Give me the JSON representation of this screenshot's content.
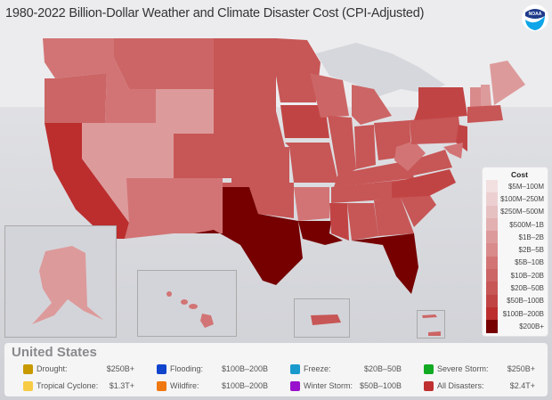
{
  "title": "1980-2022 Billion-Dollar Weather and Climate Disaster Cost (CPI-Adjusted)",
  "logo": {
    "text": "NOAA",
    "icon": "noaa-logo-icon"
  },
  "colors": {
    "c1": "#f2dfe0",
    "c2": "#ecd0d1",
    "c3": "#e6c1c2",
    "c4": "#e2b0b1",
    "c5": "#dd9a9b",
    "c6": "#d98b8c",
    "c7": "#d27475",
    "c8": "#cc6565",
    "c9": "#c75656",
    "c10": "#c14444",
    "c11": "#bc2e2e",
    "c12": "#760000"
  },
  "legend": {
    "title": "Cost",
    "items": [
      {
        "label": "$5M–100M",
        "color": "#f2dfe0"
      },
      {
        "label": "$100M–250M",
        "color": "#ecd0d1"
      },
      {
        "label": "$250M–500M",
        "color": "#e6c1c2"
      },
      {
        "label": "$500M–1B",
        "color": "#e2b0b1"
      },
      {
        "label": "$1B–2B",
        "color": "#dd9a9b"
      },
      {
        "label": "$2B–5B",
        "color": "#d98b8c"
      },
      {
        "label": "$5B–10B",
        "color": "#d27475"
      },
      {
        "label": "$10B–20B",
        "color": "#cc6565"
      },
      {
        "label": "$20B–50B",
        "color": "#c75656"
      },
      {
        "label": "$50B–100B",
        "color": "#c14444"
      },
      {
        "label": "$100B–200B",
        "color": "#bc2e2e"
      },
      {
        "label": "$200B+",
        "color": "#760000"
      }
    ]
  },
  "summary": {
    "region": "United States",
    "items": [
      {
        "label": "Drought:",
        "value": "$250B+",
        "color": "#c89a00"
      },
      {
        "label": "Flooding:",
        "value": "$100B–200B",
        "color": "#1144cc"
      },
      {
        "label": "Freeze:",
        "value": "$20B–50B",
        "color": "#1a9acc"
      },
      {
        "label": "Severe Storm:",
        "value": "$250B+",
        "color": "#11aa22"
      },
      {
        "label": "Tropical Cyclone:",
        "value": "$1.3T+",
        "color": "#f7cc44"
      },
      {
        "label": "Wildfire:",
        "value": "$100B–200B",
        "color": "#f07810"
      },
      {
        "label": "Winter Storm:",
        "value": "$50B–100B",
        "color": "#9911cc"
      },
      {
        "label": "All Disasters:",
        "value": "$2.4T+",
        "color": "#c03030"
      }
    ]
  },
  "insets": [
    "Alaska",
    "Hawaii",
    "Puerto Rico",
    "U.S. Virgin Islands"
  ],
  "chart_data": {
    "type": "choropleth",
    "title": "1980-2022 Billion-Dollar Weather and Climate Disaster Cost (CPI-Adjusted)",
    "legend_title": "Cost",
    "bins": [
      "$5M–100M",
      "$100M–250M",
      "$250M–500M",
      "$500M–1B",
      "$1B–2B",
      "$2B–5B",
      "$5B–10B",
      "$10B–20B",
      "$20B–50B",
      "$50B–100B",
      "$100B–200B",
      "$200B+"
    ],
    "states_approx": {
      "TX": "$200B+",
      "LA": "$200B+",
      "FL": "$200B+",
      "CA": "$100B–200B",
      "NY": "$50B–100B",
      "NJ": "$50B–100B",
      "IA": "$50B–100B",
      "NC": "$50B–100B",
      "MS": "$50B–100B",
      "WY": "$1B–2B",
      "NV": "$1B–2B",
      "UT": "$1B–2B",
      "AK": "$1B–2B",
      "NH": "$1B–2B",
      "ME": "$1B–2B",
      "VT": "$2B–5B",
      "AR": "$5B–10B",
      "AZ": "$5B–10B",
      "NM": "$5B–10B",
      "WA": "$5B–10B",
      "ID": "$5B–10B",
      "HI": "$5B–10B",
      "WV": "$5B–10B"
    },
    "summary": {
      "Drought": "$250B+",
      "Flooding": "$100B–200B",
      "Freeze": "$20B–50B",
      "Severe Storm": "$250B+",
      "Tropical Cyclone": "$1.3T+",
      "Wildfire": "$100B–200B",
      "Winter Storm": "$50B–100B",
      "All Disasters": "$2.4T+"
    }
  }
}
